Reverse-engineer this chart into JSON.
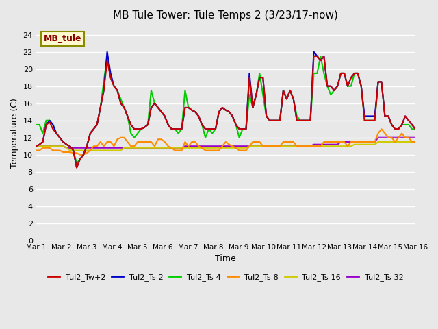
{
  "title": "MB Tule Tower: Tule Temps 2 (3/23/17-now)",
  "xlabel": "Time",
  "ylabel": "Temperature (C)",
  "annotation_text": "MB_tule",
  "annotation_color": "#8B0000",
  "annotation_bg": "#FFFACD",
  "annotation_border": "#8B8B00",
  "ylim": [
    0,
    25
  ],
  "yticks": [
    0,
    2,
    4,
    6,
    8,
    10,
    12,
    14,
    16,
    18,
    20,
    22,
    24
  ],
  "bg_color": "#E8E8E8",
  "plot_bg": "#E8E8E8",
  "grid_color": "#FFFFFF",
  "series": {
    "Tul2_Tw+2": {
      "color": "#CC0000",
      "linewidth": 1.5,
      "zorder": 5,
      "data": [
        11.0,
        11.2,
        11.5,
        13.5,
        13.8,
        13.0,
        12.5,
        12.0,
        11.5,
        11.2,
        11.0,
        10.5,
        8.5,
        9.5,
        10.0,
        11.0,
        12.5,
        13.0,
        13.5,
        15.5,
        17.5,
        21.0,
        19.0,
        18.0,
        17.5,
        16.0,
        15.5,
        14.5,
        13.5,
        13.0,
        13.0,
        13.0,
        13.2,
        13.5,
        15.5,
        16.0,
        15.5,
        15.0,
        14.5,
        13.5,
        13.0,
        13.0,
        13.0,
        13.0,
        15.5,
        15.5,
        15.2,
        15.0,
        14.5,
        13.5,
        13.0,
        13.0,
        13.0,
        13.0,
        15.0,
        15.5,
        15.2,
        15.0,
        14.5,
        13.5,
        13.0,
        13.0,
        13.0,
        19.0,
        15.5,
        17.0,
        19.0,
        19.0,
        14.5,
        14.0,
        14.0,
        14.0,
        14.0,
        17.5,
        16.5,
        17.5,
        16.5,
        14.0,
        14.0,
        14.0,
        14.0,
        14.0,
        21.5,
        21.5,
        21.0,
        21.5,
        18.0,
        18.0,
        17.5,
        18.0,
        19.5,
        19.5,
        18.0,
        19.0,
        19.5,
        19.5,
        18.0,
        14.0,
        14.0,
        14.0,
        14.0,
        18.5,
        18.5,
        14.5,
        14.5,
        13.5,
        13.0,
        13.0,
        13.5,
        14.5,
        14.0,
        13.5,
        13.0
      ]
    },
    "Tul2_Ts-2": {
      "color": "#0000CC",
      "linewidth": 1.5,
      "zorder": 4,
      "data": [
        11.0,
        11.2,
        11.5,
        13.5,
        14.0,
        13.5,
        12.5,
        12.0,
        11.5,
        11.2,
        11.0,
        10.5,
        8.5,
        9.5,
        10.0,
        11.0,
        12.5,
        13.0,
        13.5,
        15.5,
        17.5,
        22.0,
        19.5,
        18.0,
        17.5,
        16.0,
        15.5,
        14.5,
        13.5,
        13.0,
        13.0,
        13.0,
        13.2,
        13.5,
        15.5,
        16.0,
        15.5,
        15.0,
        14.5,
        13.5,
        13.0,
        13.0,
        13.0,
        13.0,
        15.5,
        15.5,
        15.2,
        15.0,
        14.5,
        13.5,
        13.0,
        13.0,
        13.0,
        13.0,
        15.0,
        15.5,
        15.2,
        15.0,
        14.5,
        13.5,
        13.0,
        13.0,
        13.0,
        19.5,
        15.5,
        17.0,
        19.0,
        19.0,
        14.5,
        14.0,
        14.0,
        14.0,
        14.0,
        17.5,
        16.5,
        17.5,
        16.5,
        14.0,
        14.0,
        14.0,
        14.0,
        14.0,
        22.0,
        21.5,
        21.0,
        21.5,
        18.0,
        18.0,
        17.5,
        18.0,
        19.5,
        19.5,
        18.0,
        19.0,
        19.5,
        19.5,
        18.0,
        14.5,
        14.5,
        14.5,
        14.5,
        18.5,
        18.5,
        14.5,
        14.5,
        13.5,
        13.0,
        13.0,
        13.5,
        14.5,
        14.0,
        13.5,
        13.0
      ]
    },
    "Tul2_Ts-4": {
      "color": "#00CC00",
      "linewidth": 1.5,
      "zorder": 3,
      "data": [
        13.5,
        13.5,
        12.5,
        14.0,
        14.0,
        13.5,
        12.5,
        12.0,
        11.5,
        11.2,
        11.0,
        10.5,
        9.0,
        9.5,
        10.0,
        11.0,
        12.5,
        13.0,
        13.5,
        15.5,
        18.5,
        21.5,
        19.0,
        18.0,
        17.5,
        16.5,
        15.5,
        14.5,
        12.5,
        12.0,
        12.5,
        13.0,
        13.2,
        13.5,
        17.5,
        16.0,
        15.5,
        15.0,
        14.5,
        13.5,
        13.0,
        13.0,
        12.5,
        13.0,
        17.5,
        15.5,
        15.2,
        15.0,
        14.5,
        13.5,
        12.0,
        13.0,
        12.5,
        13.0,
        15.0,
        15.5,
        15.2,
        15.0,
        14.5,
        13.5,
        12.0,
        13.0,
        13.0,
        17.0,
        15.5,
        17.0,
        19.5,
        17.0,
        14.5,
        14.0,
        14.0,
        14.0,
        14.0,
        17.5,
        16.5,
        17.5,
        16.5,
        14.5,
        14.0,
        14.0,
        14.0,
        14.0,
        19.5,
        19.5,
        21.5,
        19.5,
        18.0,
        17.0,
        17.5,
        18.0,
        19.5,
        19.5,
        18.0,
        18.0,
        19.5,
        19.5,
        18.0,
        14.0,
        14.0,
        14.0,
        14.0,
        18.5,
        18.5,
        14.5,
        14.5,
        13.5,
        13.0,
        13.0,
        13.5,
        13.5,
        13.5,
        13.0,
        13.0
      ]
    },
    "Tul2_Ts-8": {
      "color": "#FF8C00",
      "linewidth": 1.5,
      "zorder": 2,
      "data": [
        10.5,
        10.5,
        10.8,
        10.8,
        10.8,
        10.5,
        10.5,
        10.5,
        10.3,
        10.3,
        10.3,
        10.2,
        10.2,
        10.0,
        10.0,
        10.2,
        10.5,
        11.0,
        11.0,
        11.5,
        11.0,
        11.5,
        11.5,
        11.0,
        11.8,
        12.0,
        12.0,
        11.5,
        11.0,
        11.0,
        11.5,
        11.5,
        11.5,
        11.5,
        11.5,
        11.0,
        11.8,
        11.8,
        11.5,
        11.0,
        10.8,
        10.5,
        10.5,
        10.5,
        11.5,
        11.0,
        11.5,
        11.5,
        11.0,
        10.8,
        10.5,
        10.5,
        10.5,
        10.5,
        10.5,
        11.0,
        11.5,
        11.2,
        11.0,
        10.8,
        10.5,
        10.5,
        10.5,
        11.0,
        11.5,
        11.5,
        11.5,
        11.0,
        11.0,
        11.0,
        11.0,
        11.0,
        11.0,
        11.5,
        11.5,
        11.5,
        11.5,
        11.0,
        11.0,
        11.0,
        11.0,
        11.0,
        11.0,
        11.0,
        11.0,
        11.5,
        11.5,
        11.5,
        11.5,
        11.5,
        11.5,
        11.5,
        11.0,
        11.5,
        11.5,
        11.5,
        11.5,
        11.5,
        11.5,
        11.5,
        11.5,
        12.5,
        13.0,
        12.5,
        12.0,
        12.0,
        11.5,
        12.0,
        12.5,
        12.0,
        12.0,
        11.5,
        11.5
      ]
    },
    "Tul2_Ts-16": {
      "color": "#CCCC00",
      "linewidth": 1.5,
      "zorder": 1,
      "data": [
        11.0,
        11.0,
        11.0,
        11.0,
        11.0,
        11.0,
        11.0,
        11.0,
        11.0,
        10.8,
        10.5,
        10.5,
        10.5,
        10.5,
        10.5,
        10.5,
        10.5,
        10.5,
        10.5,
        10.5,
        10.5,
        10.5,
        10.5,
        10.5,
        10.5,
        10.5,
        10.8,
        10.8,
        10.8,
        10.8,
        10.8,
        10.8,
        10.8,
        10.8,
        10.8,
        10.8,
        10.8,
        10.8,
        10.8,
        10.8,
        10.8,
        10.8,
        10.8,
        10.8,
        10.8,
        10.8,
        10.8,
        10.8,
        10.8,
        10.8,
        10.8,
        10.8,
        10.8,
        10.8,
        10.8,
        10.8,
        10.8,
        10.8,
        10.8,
        10.8,
        10.8,
        10.8,
        10.8,
        11.0,
        11.0,
        11.0,
        11.0,
        11.0,
        11.0,
        11.0,
        11.0,
        11.0,
        11.0,
        11.0,
        11.0,
        11.0,
        11.0,
        11.0,
        11.0,
        11.0,
        11.0,
        11.0,
        11.0,
        11.0,
        11.0,
        11.0,
        11.0,
        11.0,
        11.0,
        11.0,
        11.0,
        11.0,
        11.0,
        11.0,
        11.2,
        11.2,
        11.2,
        11.2,
        11.2,
        11.2,
        11.2,
        11.5,
        11.5,
        11.5,
        11.5,
        11.5,
        11.5,
        11.5,
        11.5,
        11.5,
        11.5,
        11.5,
        11.5
      ]
    },
    "Tul2_Ts-32": {
      "color": "#9900CC",
      "linewidth": 1.5,
      "zorder": 0,
      "data": [
        11.0,
        11.0,
        11.0,
        11.0,
        11.0,
        11.0,
        11.0,
        11.0,
        11.0,
        10.8,
        10.8,
        10.8,
        10.8,
        10.8,
        10.8,
        10.8,
        10.8,
        10.8,
        10.8,
        10.8,
        10.8,
        10.8,
        10.8,
        10.8,
        10.8,
        10.8,
        10.8,
        10.8,
        10.8,
        10.8,
        10.8,
        10.8,
        10.8,
        10.8,
        10.8,
        10.8,
        10.8,
        10.8,
        10.8,
        10.8,
        10.8,
        10.8,
        10.8,
        10.8,
        11.0,
        11.0,
        11.0,
        11.0,
        11.0,
        11.0,
        11.0,
        11.0,
        11.0,
        11.0,
        11.0,
        11.0,
        11.0,
        11.0,
        11.0,
        11.0,
        11.0,
        11.0,
        11.0,
        11.0,
        11.0,
        11.0,
        11.0,
        11.0,
        11.0,
        11.0,
        11.0,
        11.0,
        11.0,
        11.0,
        11.0,
        11.0,
        11.0,
        11.0,
        11.0,
        11.0,
        11.0,
        11.0,
        11.2,
        11.2,
        11.2,
        11.2,
        11.2,
        11.2,
        11.2,
        11.2,
        11.5,
        11.5,
        11.5,
        11.5,
        11.5,
        11.5,
        11.5,
        11.5,
        11.5,
        11.5,
        11.5,
        12.0,
        12.0,
        12.0,
        12.0,
        12.0,
        12.0,
        12.0,
        12.0,
        12.0,
        12.0,
        12.0,
        12.0
      ]
    }
  },
  "xtick_labels": [
    "Mar 1",
    "Mar 2",
    "Mar 3",
    "Mar 4",
    "Mar 5",
    "Mar 6",
    "Mar 7",
    "Mar 8",
    "Mar 9",
    "Mar 10",
    "Mar 11",
    "Mar 12",
    "Mar 13",
    "Mar 14",
    "Mar 15",
    "Mar 16"
  ],
  "legend": [
    {
      "label": "Tul2_Tw+2",
      "color": "#CC0000"
    },
    {
      "label": "Tul2_Ts-2",
      "color": "#0000CC"
    },
    {
      "label": "Tul2_Ts-4",
      "color": "#00CC00"
    },
    {
      "label": "Tul2_Ts-8",
      "color": "#FF8C00"
    },
    {
      "label": "Tul2_Ts-16",
      "color": "#CCCC00"
    },
    {
      "label": "Tul2_Ts-32",
      "color": "#9900CC"
    }
  ]
}
